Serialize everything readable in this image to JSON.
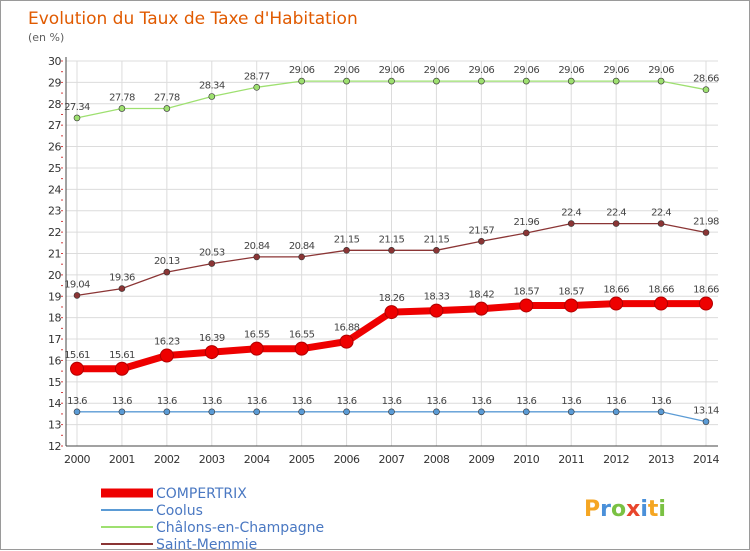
{
  "chart_data": {
    "type": "line",
    "title": "Evolution du Taux de Taxe d'Habitation",
    "ylabel": "(en %)",
    "xlabel": "",
    "categories": [
      "2000",
      "2001",
      "2002",
      "2003",
      "2004",
      "2005",
      "2006",
      "2007",
      "2008",
      "2009",
      "2010",
      "2011",
      "2012",
      "2013",
      "2014"
    ],
    "ylim": [
      12,
      30
    ],
    "yticks": [
      12,
      13,
      14,
      15,
      16,
      17,
      18,
      19,
      20,
      21,
      22,
      23,
      24,
      25,
      26,
      27,
      28,
      29,
      30
    ],
    "grid": true,
    "legend_position": "bottom-left",
    "series": [
      {
        "name": "COMPERTRIX",
        "color": "#ee0000",
        "thick": true,
        "values": [
          15.61,
          15.61,
          16.23,
          16.39,
          16.55,
          16.55,
          16.88,
          18.26,
          18.33,
          18.42,
          18.57,
          18.57,
          18.66,
          18.66,
          18.66
        ],
        "labels": [
          "15.61",
          "15.61",
          "16.23",
          "16.39",
          "16.55",
          "16.55",
          "16.88",
          "18.26",
          "18.33",
          "18.42",
          "18.57",
          "18.57",
          "18.66",
          "18.66",
          "18.66"
        ]
      },
      {
        "name": "Coolus",
        "color": "#5b9bd5",
        "thick": false,
        "values": [
          13.6,
          13.6,
          13.6,
          13.6,
          13.6,
          13.6,
          13.6,
          13.6,
          13.6,
          13.6,
          13.6,
          13.6,
          13.6,
          13.6,
          13.14
        ],
        "labels": [
          "13.6",
          "13.6",
          "13.6",
          "13.6",
          "13.6",
          "13.6",
          "13.6",
          "13.6",
          "13.6",
          "13.6",
          "13.6",
          "13.6",
          "13.6",
          "13.6",
          "13.14"
        ]
      },
      {
        "name": "Châlons-en-Champagne",
        "color": "#9ee070",
        "thick": false,
        "values": [
          27.34,
          27.78,
          27.78,
          28.34,
          28.77,
          29.06,
          29.06,
          29.06,
          29.06,
          29.06,
          29.06,
          29.06,
          29.06,
          29.06,
          28.66
        ],
        "labels": [
          "27.34",
          "27.78",
          "27.78",
          "28.34",
          "28.77",
          "29.06",
          "29.06",
          "29.06",
          "29.06",
          "29.06",
          "29.06",
          "29.06",
          "29.06",
          "29.06",
          "28.66"
        ]
      },
      {
        "name": "Saint-Memmie",
        "color": "#8b3535",
        "thick": false,
        "values": [
          19.04,
          19.36,
          20.13,
          20.53,
          20.84,
          20.84,
          21.15,
          21.15,
          21.15,
          21.57,
          21.96,
          22.4,
          22.4,
          22.4,
          21.98
        ],
        "labels": [
          "19.04",
          "19.36",
          "20.13",
          "20.53",
          "20.84",
          "20.84",
          "21.15",
          "21.15",
          "21.15",
          "21.57",
          "21.96",
          "22.4",
          "22.4",
          "22.4",
          "21.98"
        ]
      }
    ]
  },
  "logo": {
    "letters": [
      "P",
      "r",
      "o",
      "x",
      "i",
      "t",
      "i"
    ],
    "colors": [
      "#f5a623",
      "#4a90d9",
      "#7ac143",
      "#e8452c",
      "#4a90d9",
      "#f5a623",
      "#7ac143"
    ]
  }
}
